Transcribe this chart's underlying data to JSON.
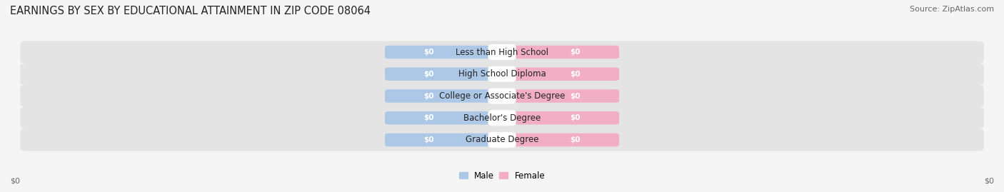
{
  "title": "EARNINGS BY SEX BY EDUCATIONAL ATTAINMENT IN ZIP CODE 08064",
  "source": "Source: ZipAtlas.com",
  "categories": [
    "Less than High School",
    "High School Diploma",
    "College or Associate's Degree",
    "Bachelor's Degree",
    "Graduate Degree"
  ],
  "male_values": [
    0,
    0,
    0,
    0,
    0
  ],
  "female_values": [
    0,
    0,
    0,
    0,
    0
  ],
  "male_color": "#adc8e6",
  "female_color": "#f2aec4",
  "male_label": "Male",
  "female_label": "Female",
  "row_bg_color": "#e4e4e4",
  "bar_label": "$0",
  "axis_label_left": "$0",
  "axis_label_right": "$0",
  "title_fontsize": 10.5,
  "source_fontsize": 8,
  "bar_label_fontsize": 7.5,
  "cat_fontsize": 8.5,
  "legend_fontsize": 8.5,
  "axis_tick_fontsize": 8,
  "figsize": [
    14.06,
    2.69
  ],
  "dpi": 100,
  "bg_color": "#f5f5f5",
  "white_color": "#ffffff"
}
